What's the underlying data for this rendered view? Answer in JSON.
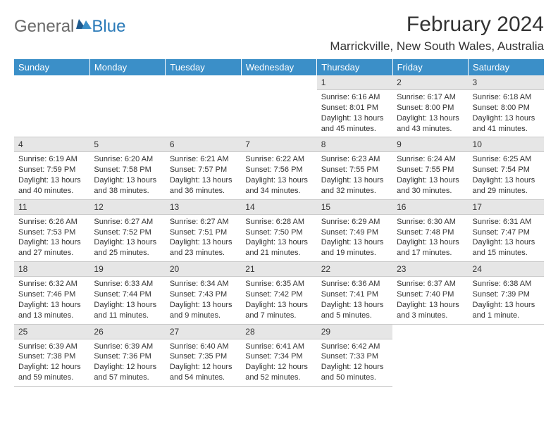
{
  "logo": {
    "part1": "General",
    "part2": "Blue"
  },
  "title": "February 2024",
  "location": "Marrickville, New South Wales, Australia",
  "colors": {
    "header_bg": "#3b8fc8",
    "header_text": "#ffffff",
    "daynum_bg": "#e6e6e6",
    "rule": "#c9c9c9",
    "logo_gray": "#6a6a6a",
    "logo_blue": "#2a7ab8"
  },
  "weekdays": [
    "Sunday",
    "Monday",
    "Tuesday",
    "Wednesday",
    "Thursday",
    "Friday",
    "Saturday"
  ],
  "weeks": [
    [
      null,
      null,
      null,
      null,
      {
        "n": "1",
        "sr": "6:16 AM",
        "ss": "8:01 PM",
        "dl": "13 hours and 45 minutes."
      },
      {
        "n": "2",
        "sr": "6:17 AM",
        "ss": "8:00 PM",
        "dl": "13 hours and 43 minutes."
      },
      {
        "n": "3",
        "sr": "6:18 AM",
        "ss": "8:00 PM",
        "dl": "13 hours and 41 minutes."
      }
    ],
    [
      {
        "n": "4",
        "sr": "6:19 AM",
        "ss": "7:59 PM",
        "dl": "13 hours and 40 minutes."
      },
      {
        "n": "5",
        "sr": "6:20 AM",
        "ss": "7:58 PM",
        "dl": "13 hours and 38 minutes."
      },
      {
        "n": "6",
        "sr": "6:21 AM",
        "ss": "7:57 PM",
        "dl": "13 hours and 36 minutes."
      },
      {
        "n": "7",
        "sr": "6:22 AM",
        "ss": "7:56 PM",
        "dl": "13 hours and 34 minutes."
      },
      {
        "n": "8",
        "sr": "6:23 AM",
        "ss": "7:55 PM",
        "dl": "13 hours and 32 minutes."
      },
      {
        "n": "9",
        "sr": "6:24 AM",
        "ss": "7:55 PM",
        "dl": "13 hours and 30 minutes."
      },
      {
        "n": "10",
        "sr": "6:25 AM",
        "ss": "7:54 PM",
        "dl": "13 hours and 29 minutes."
      }
    ],
    [
      {
        "n": "11",
        "sr": "6:26 AM",
        "ss": "7:53 PM",
        "dl": "13 hours and 27 minutes."
      },
      {
        "n": "12",
        "sr": "6:27 AM",
        "ss": "7:52 PM",
        "dl": "13 hours and 25 minutes."
      },
      {
        "n": "13",
        "sr": "6:27 AM",
        "ss": "7:51 PM",
        "dl": "13 hours and 23 minutes."
      },
      {
        "n": "14",
        "sr": "6:28 AM",
        "ss": "7:50 PM",
        "dl": "13 hours and 21 minutes."
      },
      {
        "n": "15",
        "sr": "6:29 AM",
        "ss": "7:49 PM",
        "dl": "13 hours and 19 minutes."
      },
      {
        "n": "16",
        "sr": "6:30 AM",
        "ss": "7:48 PM",
        "dl": "13 hours and 17 minutes."
      },
      {
        "n": "17",
        "sr": "6:31 AM",
        "ss": "7:47 PM",
        "dl": "13 hours and 15 minutes."
      }
    ],
    [
      {
        "n": "18",
        "sr": "6:32 AM",
        "ss": "7:46 PM",
        "dl": "13 hours and 13 minutes."
      },
      {
        "n": "19",
        "sr": "6:33 AM",
        "ss": "7:44 PM",
        "dl": "13 hours and 11 minutes."
      },
      {
        "n": "20",
        "sr": "6:34 AM",
        "ss": "7:43 PM",
        "dl": "13 hours and 9 minutes."
      },
      {
        "n": "21",
        "sr": "6:35 AM",
        "ss": "7:42 PM",
        "dl": "13 hours and 7 minutes."
      },
      {
        "n": "22",
        "sr": "6:36 AM",
        "ss": "7:41 PM",
        "dl": "13 hours and 5 minutes."
      },
      {
        "n": "23",
        "sr": "6:37 AM",
        "ss": "7:40 PM",
        "dl": "13 hours and 3 minutes."
      },
      {
        "n": "24",
        "sr": "6:38 AM",
        "ss": "7:39 PM",
        "dl": "13 hours and 1 minute."
      }
    ],
    [
      {
        "n": "25",
        "sr": "6:39 AM",
        "ss": "7:38 PM",
        "dl": "12 hours and 59 minutes."
      },
      {
        "n": "26",
        "sr": "6:39 AM",
        "ss": "7:36 PM",
        "dl": "12 hours and 57 minutes."
      },
      {
        "n": "27",
        "sr": "6:40 AM",
        "ss": "7:35 PM",
        "dl": "12 hours and 54 minutes."
      },
      {
        "n": "28",
        "sr": "6:41 AM",
        "ss": "7:34 PM",
        "dl": "12 hours and 52 minutes."
      },
      {
        "n": "29",
        "sr": "6:42 AM",
        "ss": "7:33 PM",
        "dl": "12 hours and 50 minutes."
      },
      null,
      null
    ]
  ],
  "labels": {
    "sunrise": "Sunrise:",
    "sunset": "Sunset:",
    "daylight": "Daylight:"
  }
}
